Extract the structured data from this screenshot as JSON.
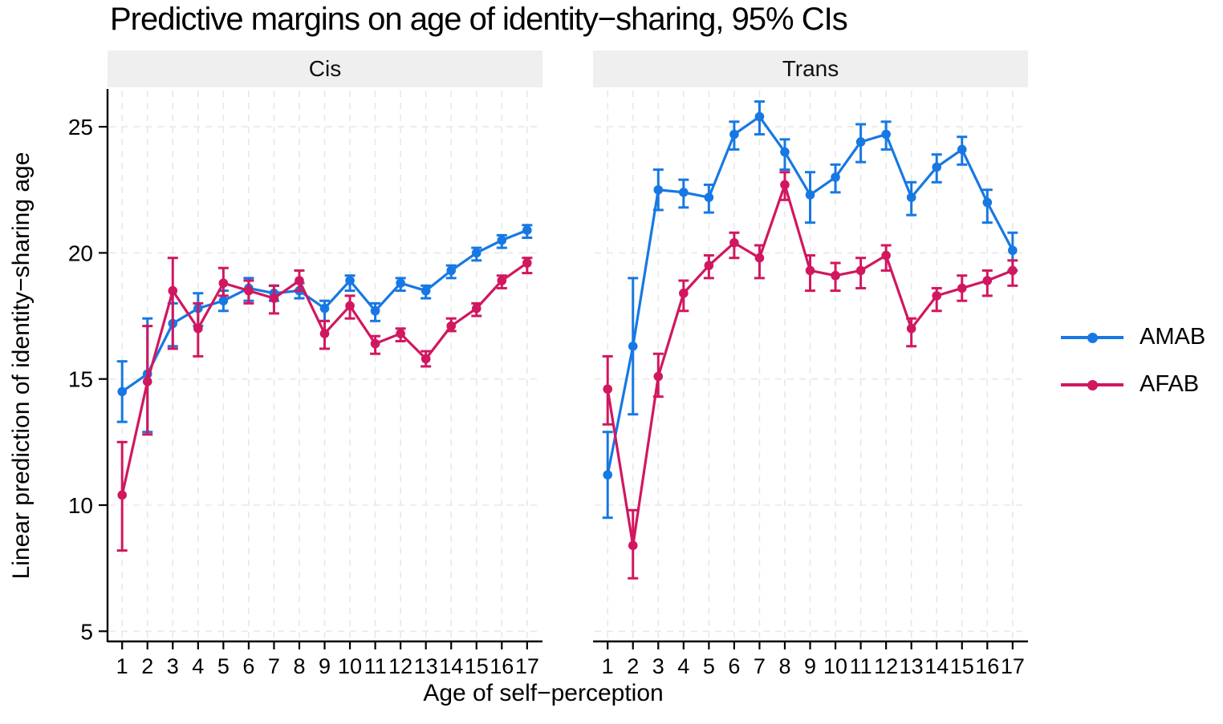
{
  "title": "Predictive margins on age of identity−sharing, 95% CIs",
  "chart_data": {
    "type": "line",
    "title": "Predictive margins on age of identity−sharing, 95% CIs",
    "xlabel": "Age of self−perception",
    "ylabel": "Linear prediction of identity−sharing age",
    "error_bars": "95% CI",
    "x": [
      1,
      2,
      3,
      4,
      5,
      6,
      7,
      8,
      9,
      10,
      11,
      12,
      13,
      14,
      15,
      16,
      17
    ],
    "y_ticks": [
      5,
      10,
      15,
      20,
      25
    ],
    "ylim": [
      4.5,
      26.5
    ],
    "grid": true,
    "legend_position": "right",
    "colors": {
      "AMAB": "#1778e3",
      "AFAB": "#d1175f"
    },
    "panels": [
      {
        "label": "Cis",
        "series": [
          {
            "name": "AMAB",
            "color": "#1778e3",
            "values": [
              14.5,
              15.2,
              17.2,
              17.8,
              18.1,
              18.6,
              18.4,
              18.5,
              17.8,
              18.9,
              17.7,
              18.8,
              18.5,
              19.3,
              20.0,
              20.5,
              20.9
            ],
            "ci_low": [
              13.3,
              12.9,
              16.3,
              17.1,
              17.7,
              18.1,
              18.1,
              18.2,
              17.3,
              18.5,
              17.3,
              18.5,
              18.2,
              19.0,
              19.7,
              20.2,
              20.6
            ],
            "ci_high": [
              15.7,
              17.4,
              18.0,
              18.4,
              18.5,
              19.0,
              18.7,
              18.8,
              18.1,
              19.1,
              18.0,
              19.0,
              18.7,
              19.5,
              20.2,
              20.7,
              21.1
            ]
          },
          {
            "name": "AFAB",
            "color": "#d1175f",
            "values": [
              10.4,
              14.9,
              18.5,
              17.0,
              18.8,
              18.5,
              18.2,
              18.9,
              16.8,
              17.9,
              16.4,
              16.8,
              15.8,
              17.1,
              17.8,
              18.9,
              19.6
            ],
            "ci_low": [
              8.2,
              12.8,
              16.2,
              15.9,
              18.3,
              18.0,
              17.6,
              18.5,
              16.2,
              17.4,
              16.0,
              16.5,
              15.5,
              16.9,
              17.5,
              18.6,
              19.2
            ],
            "ci_high": [
              12.5,
              17.1,
              19.8,
              18.0,
              19.4,
              18.9,
              18.7,
              19.3,
              17.3,
              18.3,
              16.7,
              17.0,
              16.1,
              17.4,
              18.0,
              19.1,
              19.8
            ]
          }
        ]
      },
      {
        "label": "Trans",
        "series": [
          {
            "name": "AMAB",
            "color": "#1778e3",
            "values": [
              11.2,
              16.3,
              22.5,
              22.4,
              22.2,
              24.7,
              25.4,
              24.0,
              22.3,
              23.0,
              24.4,
              24.7,
              22.2,
              23.4,
              24.1,
              22.0,
              20.1
            ],
            "ci_low": [
              9.5,
              13.6,
              21.7,
              21.8,
              21.6,
              24.1,
              24.7,
              23.3,
              21.2,
              22.4,
              23.6,
              24.1,
              21.5,
              22.8,
              23.5,
              21.2,
              19.3
            ],
            "ci_high": [
              12.9,
              19.0,
              23.3,
              22.9,
              22.7,
              25.2,
              26.0,
              24.5,
              23.2,
              23.5,
              25.1,
              25.2,
              22.8,
              23.9,
              24.6,
              22.5,
              20.8
            ]
          },
          {
            "name": "AFAB",
            "color": "#d1175f",
            "values": [
              14.6,
              8.4,
              15.1,
              18.4,
              19.5,
              20.4,
              19.8,
              22.7,
              19.3,
              19.1,
              19.3,
              19.9,
              17.0,
              18.3,
              18.6,
              18.9,
              19.3
            ],
            "ci_low": [
              13.2,
              7.1,
              14.3,
              17.7,
              19.0,
              19.8,
              19.0,
              22.1,
              18.5,
              18.5,
              18.6,
              19.3,
              16.3,
              17.7,
              18.1,
              18.3,
              18.7
            ],
            "ci_high": [
              15.9,
              9.8,
              16.0,
              18.9,
              19.9,
              20.8,
              20.3,
              23.2,
              19.9,
              19.6,
              19.8,
              20.3,
              17.4,
              18.6,
              19.1,
              19.3,
              19.7
            ]
          }
        ]
      }
    ]
  }
}
